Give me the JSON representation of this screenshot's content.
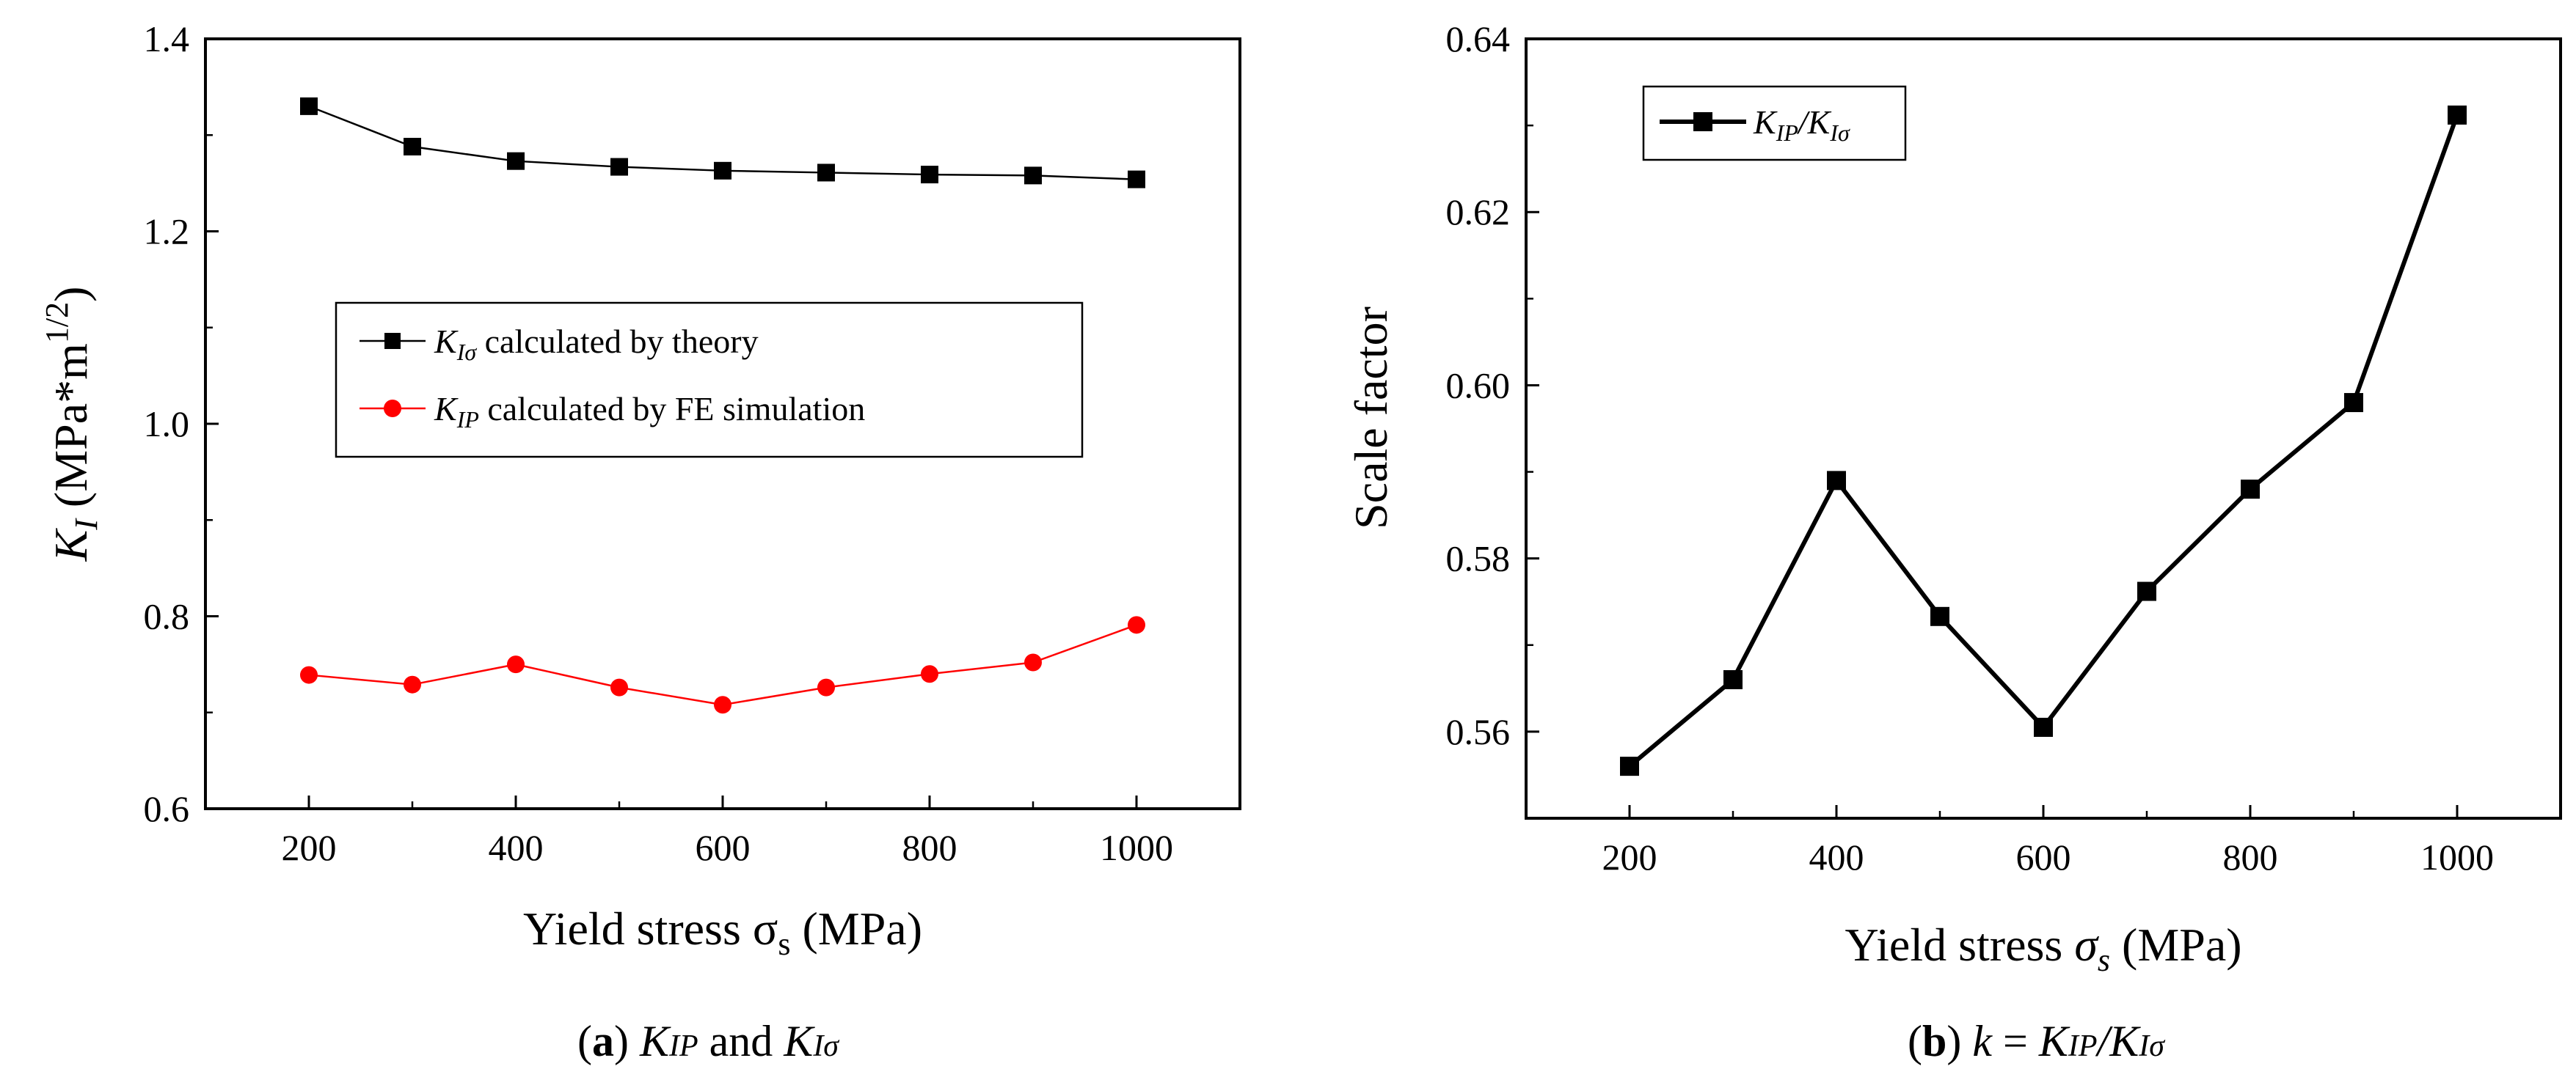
{
  "chart_data": [
    {
      "panel": "a",
      "type": "line",
      "caption": {
        "label": "a",
        "k_ip": "KIP",
        "and": "and",
        "k_isigma": "KIσ"
      },
      "xlabel": "Yield stress σs (MPa)",
      "ylabel": "KI (MPa*m1/2)",
      "xlim": [
        100,
        1100
      ],
      "ylim": [
        0.6,
        1.4
      ],
      "xticks": [
        200,
        400,
        600,
        800,
        1000
      ],
      "yticks": [
        "0.6",
        "0.8",
        "1.0",
        "1.2",
        "1.4"
      ],
      "x": [
        200,
        300,
        400,
        500,
        600,
        700,
        800,
        900,
        1000
      ],
      "series": [
        {
          "name": "KIσ calculated by theory",
          "legend_text": "calculated by theory",
          "symbol": "KIσ",
          "color": "#000000",
          "marker": "square",
          "values": [
            1.33,
            1.288,
            1.273,
            1.267,
            1.263,
            1.261,
            1.259,
            1.258,
            1.254
          ]
        },
        {
          "name": "KIP calculated by FE simulation",
          "legend_text": "calculated by FE simulation",
          "symbol": "KIP",
          "color": "#ff0000",
          "marker": "circle",
          "values": [
            0.739,
            0.729,
            0.75,
            0.726,
            0.708,
            0.726,
            0.74,
            0.752,
            0.791
          ]
        }
      ],
      "legend_position": "center-right"
    },
    {
      "panel": "b",
      "type": "line",
      "caption": {
        "label": "b",
        "k": "k",
        "eq": "=",
        "k_ip": "KIP",
        "slash": "/",
        "k_isigma": "KIσ"
      },
      "xlabel": "Yield stress σs (MPa)",
      "ylabel": "Scale factor",
      "xlim": [
        100,
        1100
      ],
      "ylim": [
        0.55,
        0.64
      ],
      "xticks": [
        200,
        400,
        600,
        800,
        1000
      ],
      "yticks": [
        "0.56",
        "0.58",
        "0.60",
        "0.62",
        "0.64"
      ],
      "x": [
        200,
        300,
        400,
        500,
        600,
        700,
        800,
        900,
        1000
      ],
      "series": [
        {
          "name": "KIP/KIσ",
          "legend_text": "KIP/KIσ",
          "color": "#000000",
          "marker": "square",
          "values": [
            0.556,
            0.566,
            0.589,
            0.5733,
            0.5605,
            0.5762,
            0.588,
            0.598,
            0.6312
          ]
        }
      ],
      "legend_position": "top-left"
    }
  ]
}
